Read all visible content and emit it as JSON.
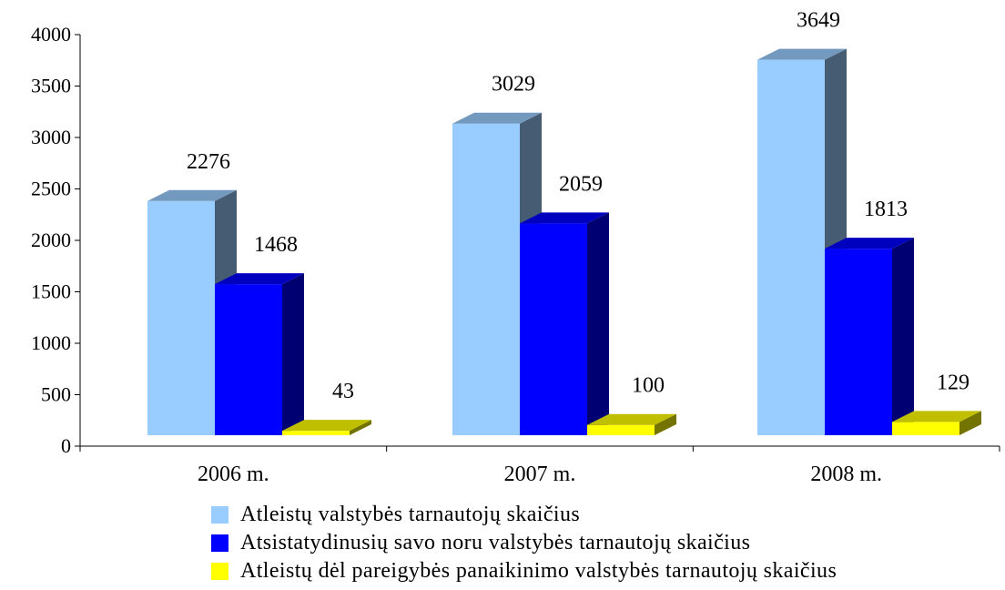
{
  "chart_data": {
    "type": "bar",
    "categories": [
      "2006 m.",
      "2007 m.",
      "2008 m."
    ],
    "series": [
      {
        "name": "Atleistų valstybės tarnautojų skaičius",
        "values": [
          2276,
          3029,
          3649
        ],
        "color": "#99ccff"
      },
      {
        "name": "Atsistatydinusių savo noru valstybės tarnautojų skaičius",
        "values": [
          1468,
          2059,
          1813
        ],
        "color": "#0000ff"
      },
      {
        "name": "Atleistų dėl pareigybės panaikinimo valstybės tarnautojų skaičius",
        "values": [
          43,
          100,
          129
        ],
        "color": "#ffff00"
      }
    ],
    "yticks": [
      0,
      500,
      1000,
      1500,
      2000,
      2500,
      3000,
      3500,
      4000
    ],
    "ylim": [
      0,
      4000
    ],
    "grid": false,
    "three_d": true,
    "legend_position": "bottom",
    "title": "",
    "xlabel": "",
    "ylabel": ""
  }
}
